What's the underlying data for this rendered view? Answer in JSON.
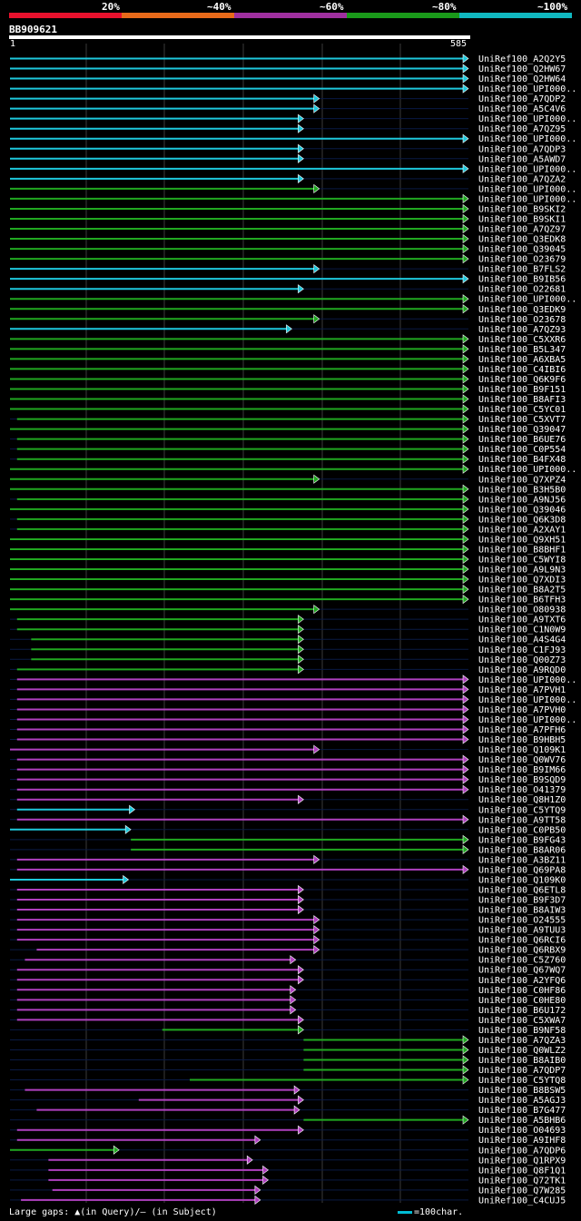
{
  "legend": {
    "labels": [
      "20%",
      "~40%",
      "~60%",
      "~80%",
      "~100%"
    ],
    "colors": [
      "#e8112d",
      "#e86a1a",
      "#a030a0",
      "#1a9a1a",
      "#10b8c0"
    ]
  },
  "query": {
    "id": "BB909621",
    "start": "1",
    "end": "585"
  },
  "footer": {
    "gaps_text": "Large gaps: ▲(in Query)/— (in Subject)",
    "scale_text": "=100char."
  },
  "chart_data": {
    "type": "alignment-map",
    "x_range": [
      1,
      585
    ],
    "hits": [
      {
        "name": "UniRef100_A2Q2Y5",
        "color": "cyan",
        "start": 1,
        "end": 585
      },
      {
        "name": "UniRef100_Q2HW67",
        "color": "cyan",
        "start": 1,
        "end": 585
      },
      {
        "name": "UniRef100_Q2HW64",
        "color": "cyan",
        "start": 1,
        "end": 585
      },
      {
        "name": "UniRef100_UPI000..",
        "color": "cyan",
        "start": 1,
        "end": 585
      },
      {
        "name": "UniRef100_A7QDP2",
        "color": "cyan",
        "start": 1,
        "end": 395
      },
      {
        "name": "UniRef100_A5C4V6",
        "color": "cyan",
        "start": 1,
        "end": 395
      },
      {
        "name": "UniRef100_UPI000..",
        "color": "cyan",
        "start": 1,
        "end": 375
      },
      {
        "name": "UniRef100_A7QZ95",
        "color": "cyan",
        "start": 1,
        "end": 375
      },
      {
        "name": "UniRef100_UPI000..",
        "color": "cyan",
        "start": 1,
        "end": 585
      },
      {
        "name": "UniRef100_A7QDP3",
        "color": "cyan",
        "start": 1,
        "end": 375
      },
      {
        "name": "UniRef100_A5AWD7",
        "color": "cyan",
        "start": 1,
        "end": 375
      },
      {
        "name": "UniRef100_UPI000..",
        "color": "cyan",
        "start": 1,
        "end": 585
      },
      {
        "name": "UniRef100_A7QZA2",
        "color": "cyan",
        "start": 1,
        "end": 375
      },
      {
        "name": "UniRef100_UPI000..",
        "color": "green",
        "start": 1,
        "end": 395
      },
      {
        "name": "UniRef100_UPI000..",
        "color": "green",
        "start": 1,
        "end": 585
      },
      {
        "name": "UniRef100_B9SKI2",
        "color": "green",
        "start": 1,
        "end": 585
      },
      {
        "name": "UniRef100_B9SKI1",
        "color": "green",
        "start": 1,
        "end": 585
      },
      {
        "name": "UniRef100_A7QZ97",
        "color": "green",
        "start": 1,
        "end": 585
      },
      {
        "name": "UniRef100_Q3EDK8",
        "color": "green",
        "start": 1,
        "end": 585
      },
      {
        "name": "UniRef100_Q39045",
        "color": "green",
        "start": 1,
        "end": 585
      },
      {
        "name": "UniRef100_O23679",
        "color": "green",
        "start": 1,
        "end": 585
      },
      {
        "name": "UniRef100_B7FLS2",
        "color": "cyan",
        "start": 1,
        "end": 395
      },
      {
        "name": "UniRef100_B9IB56",
        "color": "cyan",
        "start": 1,
        "end": 585
      },
      {
        "name": "UniRef100_O22681",
        "color": "cyan",
        "start": 1,
        "end": 375
      },
      {
        "name": "UniRef100_UPI000..",
        "color": "green",
        "start": 1,
        "end": 585
      },
      {
        "name": "UniRef100_Q3EDK9",
        "color": "green",
        "start": 1,
        "end": 585
      },
      {
        "name": "UniRef100_O23678",
        "color": "green",
        "start": 1,
        "end": 395
      },
      {
        "name": "UniRef100_A7QZ93",
        "color": "cyan",
        "start": 1,
        "end": 360
      },
      {
        "name": "UniRef100_C5XXR6",
        "color": "green",
        "start": 1,
        "end": 585
      },
      {
        "name": "UniRef100_B5L347",
        "color": "green",
        "start": 1,
        "end": 585
      },
      {
        "name": "UniRef100_A6XBA5",
        "color": "green",
        "start": 1,
        "end": 585
      },
      {
        "name": "UniRef100_C4IBI6",
        "color": "green",
        "start": 1,
        "end": 585
      },
      {
        "name": "UniRef100_Q6K9F6",
        "color": "green",
        "start": 1,
        "end": 585
      },
      {
        "name": "UniRef100_B9F151",
        "color": "green",
        "start": 1,
        "end": 585
      },
      {
        "name": "UniRef100_B8AFI3",
        "color": "green",
        "start": 1,
        "end": 585
      },
      {
        "name": "UniRef100_C5YC01",
        "color": "green",
        "start": 1,
        "end": 585
      },
      {
        "name": "UniRef100_C5XVT7",
        "color": "green",
        "start": 10,
        "end": 585
      },
      {
        "name": "UniRef100_Q39047",
        "color": "green",
        "start": 1,
        "end": 585
      },
      {
        "name": "UniRef100_B6UE76",
        "color": "green",
        "start": 10,
        "end": 585
      },
      {
        "name": "UniRef100_C0P554",
        "color": "green",
        "start": 10,
        "end": 585
      },
      {
        "name": "UniRef100_B4FX48",
        "color": "green",
        "start": 10,
        "end": 585
      },
      {
        "name": "UniRef100_UPI000..",
        "color": "green",
        "start": 1,
        "end": 585
      },
      {
        "name": "UniRef100_Q7XPZ4",
        "color": "green",
        "start": 1,
        "end": 395
      },
      {
        "name": "UniRef100_B3H5B0",
        "color": "green",
        "start": 1,
        "end": 585
      },
      {
        "name": "UniRef100_A9NJ56",
        "color": "green",
        "start": 10,
        "end": 585
      },
      {
        "name": "UniRef100_Q39046",
        "color": "green",
        "start": 1,
        "end": 585
      },
      {
        "name": "UniRef100_Q6K3D8",
        "color": "green",
        "start": 10,
        "end": 585
      },
      {
        "name": "UniRef100_A2XAY1",
        "color": "green",
        "start": 10,
        "end": 585
      },
      {
        "name": "UniRef100_Q9XH51",
        "color": "green",
        "start": 1,
        "end": 585
      },
      {
        "name": "UniRef100_B8BHF1",
        "color": "green",
        "start": 1,
        "end": 585
      },
      {
        "name": "UniRef100_C5WYI8",
        "color": "green",
        "start": 1,
        "end": 585
      },
      {
        "name": "UniRef100_A9L9N3",
        "color": "green",
        "start": 1,
        "end": 585
      },
      {
        "name": "UniRef100_Q7XDI3",
        "color": "green",
        "start": 1,
        "end": 585
      },
      {
        "name": "UniRef100_B8A2T5",
        "color": "green",
        "start": 1,
        "end": 585
      },
      {
        "name": "UniRef100_B6TFH3",
        "color": "green",
        "start": 1,
        "end": 585
      },
      {
        "name": "UniRef100_O80938",
        "color": "green",
        "start": 1,
        "end": 395
      },
      {
        "name": "UniRef100_A9TXT6",
        "color": "green",
        "start": 10,
        "end": 375
      },
      {
        "name": "UniRef100_C1N0W9",
        "color": "green",
        "start": 10,
        "end": 375
      },
      {
        "name": "UniRef100_A4S4G4",
        "color": "green",
        "start": 28,
        "end": 375
      },
      {
        "name": "UniRef100_C1FJ93",
        "color": "green",
        "start": 28,
        "end": 375
      },
      {
        "name": "UniRef100_Q00Z73",
        "color": "green",
        "start": 28,
        "end": 375
      },
      {
        "name": "UniRef100_A9RQD0",
        "color": "green",
        "start": 10,
        "end": 375
      },
      {
        "name": "UniRef100_UPI000..",
        "color": "magenta",
        "start": 10,
        "end": 585
      },
      {
        "name": "UniRef100_A7PVH1",
        "color": "magenta",
        "start": 10,
        "end": 585
      },
      {
        "name": "UniRef100_UPI000..",
        "color": "magenta",
        "start": 10,
        "end": 585
      },
      {
        "name": "UniRef100_A7PVH0",
        "color": "magenta",
        "start": 10,
        "end": 585
      },
      {
        "name": "UniRef100_UPI000..",
        "color": "magenta",
        "start": 10,
        "end": 585
      },
      {
        "name": "UniRef100_A7PFH6",
        "color": "magenta",
        "start": 10,
        "end": 585
      },
      {
        "name": "UniRef100_B9HBH5",
        "color": "magenta",
        "start": 10,
        "end": 585
      },
      {
        "name": "UniRef100_Q109K1",
        "color": "magenta",
        "start": 1,
        "end": 395
      },
      {
        "name": "UniRef100_Q0WV76",
        "color": "magenta",
        "start": 10,
        "end": 585
      },
      {
        "name": "UniRef100_B9IM66",
        "color": "magenta",
        "start": 10,
        "end": 585
      },
      {
        "name": "UniRef100_B9SQD9",
        "color": "magenta",
        "start": 10,
        "end": 585
      },
      {
        "name": "UniRef100_O41379",
        "color": "magenta",
        "start": 10,
        "end": 585
      },
      {
        "name": "UniRef100_Q8H1Z0",
        "color": "magenta",
        "start": 10,
        "end": 375
      },
      {
        "name": "UniRef100_C5YTQ9",
        "color": "cyan",
        "start": 10,
        "end": 160
      },
      {
        "name": "UniRef100_A9TT58",
        "color": "magenta",
        "start": 10,
        "end": 585
      },
      {
        "name": "UniRef100_C0PB50",
        "color": "cyan",
        "start": 1,
        "end": 155
      },
      {
        "name": "UniRef100_B9FG43",
        "color": "green",
        "start": 155,
        "end": 585
      },
      {
        "name": "UniRef100_B8AR06",
        "color": "green",
        "start": 155,
        "end": 585
      },
      {
        "name": "UniRef100_A3BZ11",
        "color": "magenta",
        "start": 10,
        "end": 395
      },
      {
        "name": "UniRef100_Q69PA8",
        "color": "magenta",
        "start": 10,
        "end": 585
      },
      {
        "name": "UniRef100_Q109K0",
        "color": "cyan",
        "start": 1,
        "end": 152
      },
      {
        "name": "UniRef100_Q6ETL8",
        "color": "magenta",
        "start": 10,
        "end": 375
      },
      {
        "name": "UniRef100_B9F3D7",
        "color": "magenta",
        "start": 10,
        "end": 375
      },
      {
        "name": "UniRef100_B8AIW3",
        "color": "magenta",
        "start": 10,
        "end": 375
      },
      {
        "name": "UniRef100_O24555",
        "color": "magenta",
        "start": 10,
        "end": 395
      },
      {
        "name": "UniRef100_A9TUU3",
        "color": "magenta",
        "start": 10,
        "end": 395
      },
      {
        "name": "UniRef100_Q6RCI6",
        "color": "magenta",
        "start": 10,
        "end": 395
      },
      {
        "name": "UniRef100_Q6RBX9",
        "color": "magenta",
        "start": 35,
        "end": 395
      },
      {
        "name": "UniRef100_C5Z760",
        "color": "magenta",
        "start": 20,
        "end": 365
      },
      {
        "name": "UniRef100_Q67WQ7",
        "color": "magenta",
        "start": 10,
        "end": 375
      },
      {
        "name": "UniRef100_A2YFQ6",
        "color": "magenta",
        "start": 10,
        "end": 375
      },
      {
        "name": "UniRef100_C0HF86",
        "color": "magenta",
        "start": 10,
        "end": 365
      },
      {
        "name": "UniRef100_C0HE80",
        "color": "magenta",
        "start": 10,
        "end": 365
      },
      {
        "name": "UniRef100_B6U172",
        "color": "magenta",
        "start": 10,
        "end": 365
      },
      {
        "name": "UniRef100_C5XWA7",
        "color": "magenta",
        "start": 10,
        "end": 375
      },
      {
        "name": "UniRef100_B9NF58",
        "color": "green",
        "start": 195,
        "end": 375
      },
      {
        "name": "UniRef100_A7QZA3",
        "color": "green",
        "start": 375,
        "end": 585
      },
      {
        "name": "UniRef100_Q0WLZ2",
        "color": "green",
        "start": 375,
        "end": 585
      },
      {
        "name": "UniRef100_B8AIB0",
        "color": "green",
        "start": 375,
        "end": 585
      },
      {
        "name": "UniRef100_A7QDP7",
        "color": "green",
        "start": 375,
        "end": 585
      },
      {
        "name": "UniRef100_C5YTQ8",
        "color": "green",
        "start": 230,
        "end": 585
      },
      {
        "name": "UniRef100_B8BSW5",
        "color": "magenta",
        "start": 20,
        "end": 370
      },
      {
        "name": "UniRef100_A5AGJ3",
        "color": "magenta",
        "start": 165,
        "end": 375
      },
      {
        "name": "UniRef100_B7G477",
        "color": "magenta",
        "start": 35,
        "end": 370
      },
      {
        "name": "UniRef100_A5BHB6",
        "color": "green",
        "start": 375,
        "end": 585
      },
      {
        "name": "UniRef100_O04693",
        "color": "magenta",
        "start": 10,
        "end": 375
      },
      {
        "name": "UniRef100_A9IHF8",
        "color": "magenta",
        "start": 10,
        "end": 320
      },
      {
        "name": "UniRef100_A7QDP6",
        "color": "green",
        "start": 1,
        "end": 140
      },
      {
        "name": "UniRef100_Q1RPX9",
        "color": "magenta",
        "start": 50,
        "end": 310
      },
      {
        "name": "UniRef100_Q8F1Q1",
        "color": "magenta",
        "start": 50,
        "end": 330
      },
      {
        "name": "UniRef100_Q72TK1",
        "color": "magenta",
        "start": 50,
        "end": 330
      },
      {
        "name": "UniRef100_Q7W285",
        "color": "magenta",
        "start": 55,
        "end": 320
      },
      {
        "name": "UniRef100_C4CUJ5",
        "color": "magenta",
        "start": 15,
        "end": 320
      }
    ]
  }
}
